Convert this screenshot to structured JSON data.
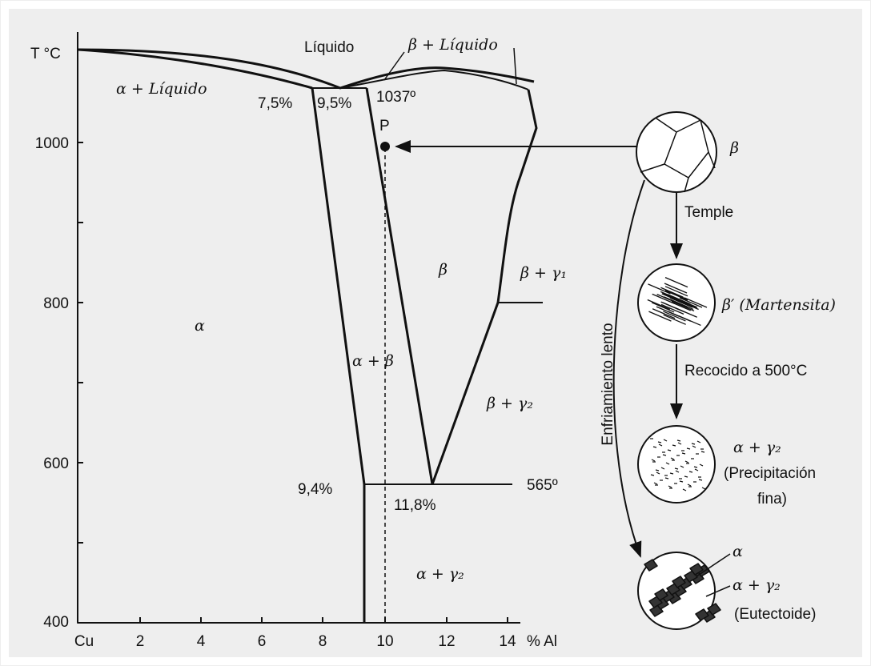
{
  "axes": {
    "y_label": "T °C",
    "y_ticks": [
      "1000",
      "800",
      "600",
      "400"
    ],
    "x_ticks": [
      "Cu",
      "2",
      "4",
      "6",
      "8",
      "10",
      "12",
      "14"
    ],
    "x_unit": "% Al"
  },
  "regions": [
    "Líquido",
    "β + Líquido",
    "α + Líquido",
    "α",
    "α + β",
    "β",
    "β + γ₁",
    "β + γ₂",
    "α + γ₂"
  ],
  "annotations": [
    "7,5%",
    "9,5%",
    "1037º",
    "P",
    "9,4%",
    "11,8%",
    "565º"
  ],
  "steps": [
    "Temple",
    "Recocido a 500°C",
    "Enfriamiento lento"
  ],
  "micrographs": [
    {
      "lines": [
        "β"
      ]
    },
    {
      "lines": [
        "β′ (Martensita)"
      ]
    },
    {
      "lines": [
        "α + γ₂",
        "(Precipitación",
        "fina)"
      ]
    },
    {
      "lines": [
        "α",
        "α + γ₂",
        "(Eutectoide)"
      ]
    }
  ]
}
